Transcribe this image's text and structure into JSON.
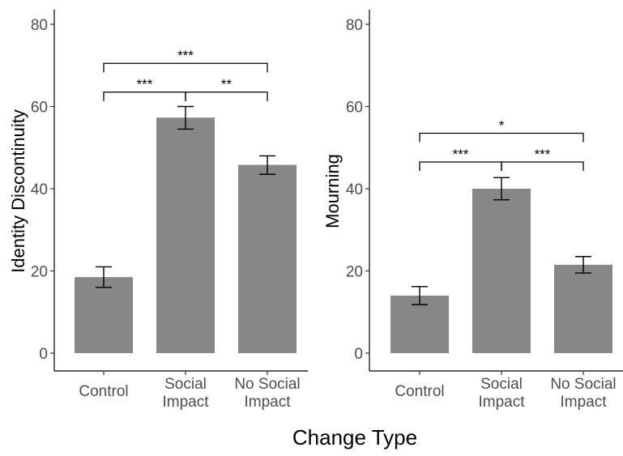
{
  "figure": {
    "xtitle": "Change Type"
  },
  "chart_data": [
    {
      "type": "bar",
      "categories": [
        [
          "Control"
        ],
        [
          "Social",
          "Impact"
        ],
        [
          "No Social",
          "Impact"
        ]
      ],
      "values": [
        18.5,
        57.3,
        45.8
      ],
      "error_low": [
        16.0,
        54.5,
        43.5
      ],
      "error_high": [
        21.0,
        60.0,
        48.0
      ],
      "ylabel": "Identity Discontinuity",
      "xlabel": "",
      "ylim": [
        0,
        83
      ],
      "yticks": [
        0,
        20,
        40,
        60,
        80
      ],
      "bar_color": "#878787",
      "grid": false,
      "significance": [
        {
          "from": 0,
          "to": 1,
          "label": "***",
          "y": 63.5
        },
        {
          "from": 1,
          "to": 2,
          "label": "**",
          "y": 63.5
        },
        {
          "from": 0,
          "to": 2,
          "label": "***",
          "y": 70.5
        }
      ]
    },
    {
      "type": "bar",
      "categories": [
        [
          "Control"
        ],
        [
          "Social",
          "Impact"
        ],
        [
          "No Social",
          "Impact"
        ]
      ],
      "values": [
        14.0,
        40.0,
        21.5
      ],
      "error_low": [
        11.8,
        37.3,
        19.5
      ],
      "error_high": [
        16.2,
        42.7,
        23.5
      ],
      "ylabel": "Mourning",
      "xlabel": "",
      "ylim": [
        0,
        83
      ],
      "yticks": [
        0,
        20,
        40,
        60,
        80
      ],
      "bar_color": "#878787",
      "grid": false,
      "significance": [
        {
          "from": 0,
          "to": 1,
          "label": "***",
          "y": 46.5
        },
        {
          "from": 1,
          "to": 2,
          "label": "***",
          "y": 46.5
        },
        {
          "from": 0,
          "to": 2,
          "label": "*",
          "y": 53.5
        }
      ]
    }
  ]
}
